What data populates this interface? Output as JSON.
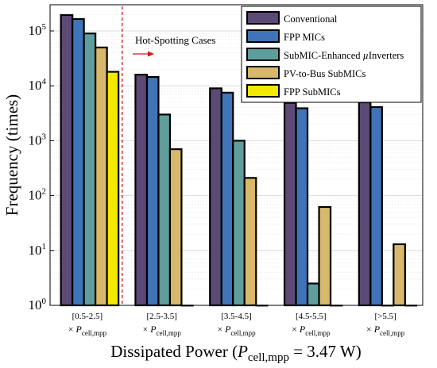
{
  "chart_data": {
    "type": "bar",
    "title": "",
    "xlabel": "Dissipated Power (P_cell,mpp = 3.47 W)",
    "ylabel": "Frequency (times)",
    "yscale": "log",
    "ylim": [
      1,
      300000
    ],
    "ytick_labels": [
      "10^0",
      "10^1",
      "10^2",
      "10^3",
      "10^4",
      "10^5"
    ],
    "grid": true,
    "legend_position": "top-right",
    "categories": [
      "[0.5-2.5]",
      "[2.5-3.5]",
      "[3.5-4.5]",
      "[4.5-5.5]",
      "[>5.5]"
    ],
    "category_suffix": "× P_cell,mpp",
    "series": [
      {
        "name": "Conventional",
        "color": "#5B4A75",
        "values": [
          195000,
          16000,
          9000,
          4900,
          5000
        ]
      },
      {
        "name": "FPP MICs",
        "color": "#3F74B8",
        "values": [
          165000,
          14500,
          7500,
          3900,
          4100
        ]
      },
      {
        "name": "SubMIC-Enhanced µInverters",
        "color": "#5F9E9C",
        "values": [
          90000,
          3000,
          1000,
          2.5,
          1
        ]
      },
      {
        "name": "PV-to-Bus SubMICs",
        "color": "#D8B86A",
        "values": [
          50000,
          700,
          210,
          62,
          13
        ]
      },
      {
        "name": "FPP SubMICs",
        "color": "#F2E800",
        "values": [
          18000,
          1,
          1,
          1,
          1
        ]
      }
    ],
    "annotations": [
      {
        "text": "Hot-Spotting Cases",
        "type": "dashed-divider-arrow"
      }
    ]
  }
}
